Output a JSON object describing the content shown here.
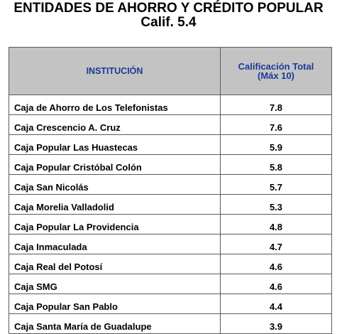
{
  "title": "ENTIDADES DE AHORRO Y CRÉDITO POPULAR",
  "subtitle": "Calif. 5.4",
  "table": {
    "headers": {
      "institution": "INSTITUCIÓN",
      "score_line1": "Calificación Total",
      "score_line2": "(Máx 10)"
    },
    "rows": [
      {
        "name": "Caja de Ahorro de Los Telefonistas",
        "score": "7.8"
      },
      {
        "name": "Caja Crescencio A. Cruz",
        "score": "7.6"
      },
      {
        "name": "Caja Popular Las Huastecas",
        "score": "5.9"
      },
      {
        "name": "Caja Popular Cristóbal Colón",
        "score": "5.8"
      },
      {
        "name": "Caja San Nicolás",
        "score": "5.7"
      },
      {
        "name": "Caja Morelia Valladolid",
        "score": "5.3"
      },
      {
        "name": "Caja Popular La Providencia",
        "score": "4.8"
      },
      {
        "name": "Caja Inmaculada",
        "score": "4.7"
      },
      {
        "name": "Caja Real del Potosí",
        "score": "4.6"
      },
      {
        "name": "Caja SMG",
        "score": "4.6"
      },
      {
        "name": "Caja Popular San Pablo",
        "score": "4.4"
      },
      {
        "name": "Caja Santa María de Guadalupe",
        "score": "3.9"
      }
    ]
  },
  "colors": {
    "header_background": "#c3c3c3",
    "header_text": "#1a3a9b",
    "border": "#5a5a5a"
  }
}
